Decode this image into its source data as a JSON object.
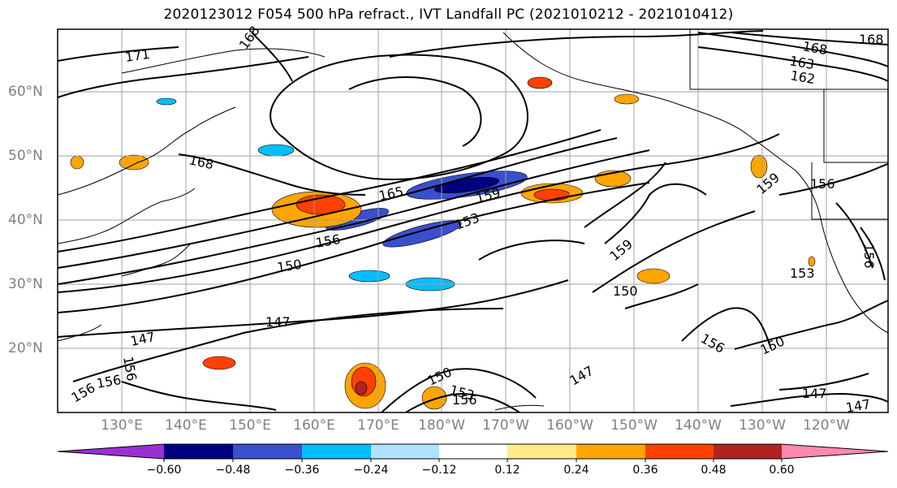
{
  "title": "2020123012 F054 500 hPa refract., IVT Landfall PC (2021010212 - 2021010412)",
  "lat_labels": [
    "60°N",
    "50°N",
    "40°N",
    "30°N",
    "20°N"
  ],
  "lon_labels": [
    "130°E",
    "140°E",
    "150°E",
    "160°E",
    "170°E",
    "180°W",
    "170°W",
    "160°W",
    "150°W",
    "140°W",
    "130°W",
    "120°W"
  ],
  "colorbar": {
    "ticks": [
      "−0.60",
      "−0.48",
      "−0.36",
      "−0.24",
      "−0.12",
      "0.12",
      "0.24",
      "0.36",
      "0.48",
      "0.60"
    ],
    "colors": [
      "#9b30d0",
      "#000080",
      "#3a4fcc",
      "#00bfff",
      "#b0e2ff",
      "#ffffff",
      "#ffeb8a",
      "#ffa500",
      "#ff4000",
      "#b22222",
      "#ff88b0"
    ]
  },
  "contour_labels": [
    "171",
    "168",
    "168",
    "168",
    "163",
    "162",
    "168",
    "165",
    "159",
    "153",
    "156",
    "150",
    "159",
    "150",
    "159",
    "156",
    "153",
    "156",
    "147",
    "147",
    "150",
    "153",
    "156",
    "147",
    "156",
    "150",
    "147",
    "147",
    "156",
    "156",
    "156"
  ]
}
